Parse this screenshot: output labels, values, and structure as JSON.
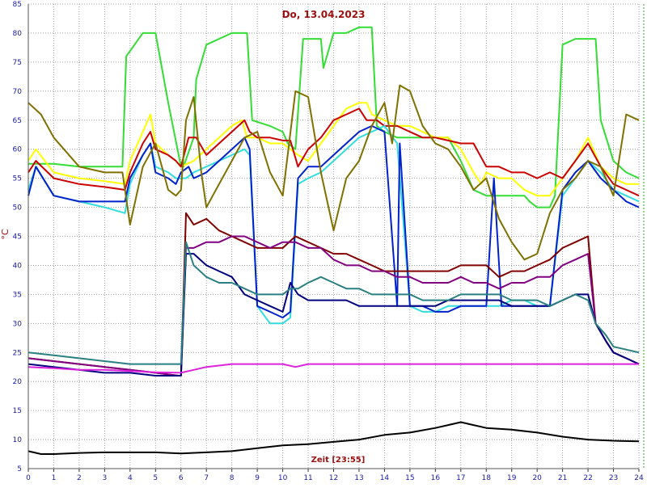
{
  "chart_data": {
    "type": "line",
    "title": "Do, 13.04.2023",
    "xlabel": "Zeit [23:55]",
    "ylabel": "°C",
    "xlim": [
      0,
      24
    ],
    "ylim": [
      5,
      85
    ],
    "xticks": [
      "0",
      "1",
      "2",
      "3",
      "4",
      "5",
      "6",
      "7",
      "8",
      "9",
      "10",
      "11",
      "12",
      "13",
      "14",
      "15",
      "16",
      "17",
      "18",
      "19",
      "20",
      "21",
      "22",
      "23",
      "24"
    ],
    "yticks": [
      "5",
      "10",
      "15",
      "20",
      "25",
      "30",
      "35",
      "40",
      "45",
      "50",
      "55",
      "60",
      "65",
      "70",
      "75",
      "80",
      "85"
    ],
    "grid": true,
    "series": [
      {
        "color": "#33dd33",
        "x": [
          0,
          1,
          2,
          3,
          3.7,
          3.85,
          4.5,
          5,
          5.5,
          6.0,
          6.1,
          6.5,
          6.6,
          7,
          7.5,
          8,
          8.6,
          8.8,
          9.5,
          10,
          10.2,
          10.5,
          10.8,
          11,
          11.5,
          11.6,
          12,
          12.5,
          13,
          13.5,
          13.7,
          14,
          14.5,
          15,
          15.5,
          16,
          16.5,
          17,
          17.5,
          18,
          18.2,
          18.5,
          19,
          19.5,
          19.7,
          20,
          20.5,
          20.7,
          21,
          21.5,
          22,
          22.3,
          22.5,
          23,
          23.5,
          24
        ],
        "values": [
          57.5,
          57.5,
          57,
          57,
          57,
          76,
          80,
          80,
          68,
          57,
          57,
          62,
          72,
          78,
          79,
          80,
          80,
          65,
          64,
          63,
          61,
          60,
          79,
          79,
          79,
          74,
          80,
          80,
          81,
          81,
          64,
          63,
          62,
          62,
          62,
          62,
          62,
          58,
          53,
          52,
          52,
          52,
          52,
          52,
          51,
          50,
          50,
          52,
          78,
          79,
          79,
          79,
          65,
          58,
          56,
          55
        ]
      },
      {
        "color": "#ffff00",
        "x": [
          0,
          0.3,
          1,
          2,
          3,
          3.8,
          4,
          4.5,
          4.8,
          5,
          5.5,
          5.8,
          6.0,
          6.5,
          7,
          7.5,
          8,
          8.4,
          8.6,
          9,
          9.5,
          10,
          10.3,
          10.6,
          11,
          11.5,
          12,
          12.5,
          13,
          13.3,
          13.5,
          14,
          14.5,
          15,
          15.5,
          16,
          16.5,
          17,
          17.5,
          17.8,
          18,
          18.5,
          19,
          19.5,
          20,
          20.5,
          21,
          21.5,
          22,
          22.5,
          23,
          23.5,
          24
        ],
        "values": [
          58,
          60,
          56,
          55,
          54.5,
          54,
          58,
          63,
          66,
          61,
          59,
          58,
          57,
          58,
          60,
          62,
          64,
          65,
          62,
          62,
          61,
          61,
          60,
          59,
          58,
          61,
          64,
          67,
          68,
          68,
          66,
          65,
          64,
          64,
          63,
          62,
          62,
          60,
          56,
          54,
          56,
          55,
          55,
          53,
          52,
          52,
          55,
          58,
          62,
          57,
          55,
          54,
          54
        ]
      },
      {
        "color": "#cc0000",
        "x": [
          0,
          0.3,
          1,
          2,
          3,
          3.8,
          4,
          4.5,
          4.8,
          5,
          5.5,
          5.8,
          6.0,
          6.3,
          6.6,
          7,
          7.5,
          8,
          8.5,
          8.7,
          9,
          9.5,
          10,
          10.3,
          10.6,
          11,
          11.5,
          12,
          12.5,
          13,
          13.3,
          13.7,
          14,
          14.5,
          15,
          15.5,
          16,
          16.5,
          17,
          17.5,
          18,
          18.5,
          19,
          19.5,
          20,
          20.5,
          21,
          21.5,
          22,
          22.5,
          23,
          23.5,
          24
        ],
        "values": [
          56,
          58,
          55,
          54,
          53.5,
          53,
          56,
          61,
          63,
          60,
          59,
          58,
          57,
          62,
          62,
          59,
          61,
          63,
          65,
          63,
          62,
          62,
          61.5,
          61.5,
          57,
          60,
          62,
          65,
          66,
          67,
          65,
          65,
          64,
          64,
          63,
          62,
          62,
          61.5,
          61,
          61,
          57,
          57,
          56,
          56,
          55,
          56,
          55,
          58,
          61,
          57,
          54,
          53,
          52
        ]
      },
      {
        "color": "#33dddd",
        "x": [
          0,
          0.3,
          1,
          2,
          3,
          3.8,
          4,
          4.5,
          4.8,
          5,
          5.5,
          5.8,
          6.0,
          6.2,
          6.5,
          7,
          7.5,
          8,
          8.5,
          8.7,
          9,
          9.5,
          10,
          10.3,
          10.6,
          11,
          11.5,
          12,
          12.5,
          13,
          13.5,
          14,
          14.5,
          15,
          15.5,
          16,
          16.5,
          17,
          17.5,
          18,
          18.5,
          19,
          19.5,
          20,
          20.5,
          21,
          21.5,
          22,
          22.5,
          23,
          23.5,
          24
        ],
        "values": [
          53,
          57,
          52,
          51,
          50,
          49,
          54,
          59,
          61,
          57,
          56,
          55,
          55,
          55,
          56,
          57,
          58,
          59,
          60,
          59,
          33,
          30,
          30,
          31,
          54,
          55,
          56,
          58,
          60,
          62,
          63,
          64,
          61,
          33,
          32,
          32,
          33,
          33,
          33,
          33,
          33,
          34,
          34,
          33,
          33,
          52,
          55,
          58,
          56,
          53,
          52,
          51
        ]
      },
      {
        "color": "#0022cc",
        "x": [
          0,
          0.3,
          1,
          2,
          3,
          3.8,
          4,
          4.5,
          4.8,
          5,
          5.5,
          5.8,
          6.0,
          6.3,
          6.5,
          7,
          7.5,
          8,
          8.5,
          8.7,
          9,
          9.5,
          10,
          10.3,
          10.6,
          11,
          11.5,
          12,
          12.5,
          13,
          13.5,
          14,
          14.5,
          14.6,
          15,
          15.5,
          16,
          16.5,
          17,
          17.5,
          18,
          18.3,
          18.6,
          19,
          19.5,
          20,
          20.5,
          21,
          21.5,
          22,
          22.5,
          23,
          23.5,
          24
        ],
        "values": [
          52,
          57,
          52,
          51,
          51,
          51,
          55,
          59,
          61,
          56,
          55,
          54,
          56,
          57,
          55,
          56,
          58,
          60,
          62,
          60,
          33,
          32,
          31,
          32,
          55,
          57,
          57,
          59,
          61,
          63,
          64,
          63,
          33,
          61,
          33,
          33,
          32,
          32,
          33,
          33,
          33,
          55,
          33,
          33,
          33,
          33,
          33,
          53,
          56,
          58,
          55,
          53,
          51,
          50
        ]
      },
      {
        "color": "#800000",
        "x": [
          0,
          1,
          2,
          3,
          4,
          5,
          5.9,
          6.0,
          6.2,
          6.5,
          7,
          7.5,
          8,
          8.5,
          9,
          9.5,
          10,
          10.5,
          11,
          11.5,
          12,
          12.5,
          13,
          13.5,
          14,
          14.5,
          15,
          15.5,
          16,
          16.5,
          17,
          17.5,
          18,
          18.5,
          19,
          19.5,
          20,
          20.5,
          21,
          21.5,
          22,
          22.3,
          22.7,
          23,
          23.5,
          24
        ],
        "values": [
          24,
          23.5,
          23,
          22.5,
          22,
          21.5,
          21,
          21,
          49,
          47,
          48,
          46,
          45,
          44,
          43,
          43,
          43,
          45,
          44,
          43,
          42,
          42,
          41,
          40,
          39,
          39,
          39,
          39,
          39,
          39,
          40,
          40,
          40,
          38,
          39,
          39,
          40,
          41,
          43,
          44,
          45,
          30,
          27,
          25,
          24,
          23
        ]
      },
      {
        "color": "#800080",
        "x": [
          0,
          1,
          2,
          3,
          4,
          5,
          5.9,
          6.0,
          6.2,
          6.5,
          7,
          7.5,
          8,
          8.5,
          9,
          9.5,
          10,
          10.5,
          11,
          11.5,
          12,
          12.5,
          13,
          13.5,
          14,
          14.5,
          15,
          15.5,
          16,
          16.5,
          17,
          17.5,
          18,
          18.5,
          19,
          19.5,
          20,
          20.5,
          21,
          21.5,
          22,
          22.3,
          22.7,
          23,
          23.5,
          24
        ],
        "values": [
          24,
          23.5,
          23,
          22.5,
          22,
          21.5,
          21,
          21,
          43,
          43,
          44,
          44,
          45,
          45,
          44,
          43,
          44,
          44,
          43,
          43,
          41,
          40,
          40,
          39,
          39,
          38,
          38,
          37,
          37,
          37,
          38,
          37,
          37,
          36,
          37,
          37,
          38,
          38,
          40,
          41,
          42,
          30,
          27,
          25,
          24,
          23
        ]
      },
      {
        "color": "#000080",
        "x": [
          0,
          1,
          2,
          3,
          4,
          5,
          5.9,
          6.0,
          6.2,
          6.5,
          7,
          7.5,
          8,
          8.5,
          9,
          9.5,
          10,
          10.3,
          10.6,
          11,
          11.5,
          12,
          12.5,
          13,
          13.5,
          14,
          14.5,
          15,
          15.5,
          16,
          16.5,
          17,
          17.5,
          18,
          18.5,
          19,
          19.5,
          20,
          20.5,
          21,
          21.5,
          22,
          22.3,
          22.7,
          23,
          23.5,
          24
        ],
        "values": [
          23,
          22.5,
          22,
          21.5,
          21.5,
          21,
          21,
          21,
          42,
          42,
          40,
          39,
          38,
          35,
          34,
          33,
          32,
          37,
          35,
          34,
          34,
          34,
          34,
          33,
          33,
          33,
          33,
          33,
          33,
          33,
          34,
          34,
          34,
          34,
          34,
          33,
          33,
          33,
          33,
          34,
          35,
          35,
          30,
          27,
          25,
          24,
          23
        ]
      },
      {
        "color": "#2a8080",
        "x": [
          0,
          1,
          2,
          3,
          4,
          5,
          5.9,
          6.0,
          6.2,
          6.5,
          7,
          7.5,
          8,
          8.5,
          9,
          9.5,
          10,
          10.3,
          10.6,
          11,
          11.5,
          12,
          12.5,
          13,
          13.5,
          14,
          14.5,
          15,
          15.5,
          16,
          16.5,
          17,
          17.5,
          18,
          18.5,
          19,
          19.5,
          20,
          20.5,
          21,
          21.5,
          22,
          22.3,
          22.7,
          23,
          23.5,
          24
        ],
        "values": [
          25,
          24.5,
          24,
          23.5,
          23,
          23,
          23,
          23,
          44,
          40,
          38,
          37,
          37,
          36,
          35,
          35,
          35,
          36,
          36,
          37,
          38,
          37,
          36,
          36,
          35,
          35,
          35,
          35,
          34,
          34,
          34,
          35,
          35,
          35,
          35,
          34,
          34,
          34,
          33,
          34,
          35,
          34,
          30,
          28,
          26,
          25.5,
          25
        ]
      },
      {
        "color": "#807000",
        "x": [
          0,
          0.5,
          1,
          2,
          3,
          3.7,
          4,
          4.5,
          5,
          5.5,
          5.8,
          6.0,
          6.2,
          6.5,
          6.8,
          7,
          7.5,
          8,
          8.5,
          9,
          9.5,
          10,
          10.5,
          11,
          11.5,
          12,
          12.5,
          13,
          13.5,
          14,
          14.3,
          14.6,
          15,
          15.5,
          16,
          16.5,
          17,
          17.5,
          18,
          18.5,
          19,
          19.5,
          20,
          20.5,
          21,
          21.5,
          22,
          22.5,
          23,
          23.5,
          24
        ],
        "values": [
          68,
          66,
          62,
          57,
          56,
          56,
          47,
          57,
          61,
          53,
          52,
          53,
          65,
          69,
          56,
          50,
          54,
          58,
          62,
          63,
          56,
          52,
          70,
          69,
          56,
          46,
          55,
          58,
          64,
          68,
          61,
          71,
          70,
          64,
          61,
          60,
          57,
          53,
          55,
          48,
          44,
          41,
          42,
          49,
          53,
          55,
          58,
          57,
          52,
          66,
          65
        ]
      },
      {
        "color": "#dd22dd",
        "x": [
          0,
          1,
          2,
          3,
          4,
          5,
          6,
          6.5,
          7,
          8,
          9,
          10,
          10.5,
          11,
          12,
          13,
          14,
          15,
          16,
          17,
          18,
          19,
          20,
          21,
          22,
          23,
          24
        ],
        "values": [
          22.5,
          22.3,
          22,
          22,
          21.8,
          21.6,
          21.5,
          22,
          22.5,
          23,
          23,
          23,
          22.5,
          23,
          23,
          23,
          23,
          23,
          23,
          23,
          23,
          23,
          23,
          23,
          23,
          23,
          23
        ]
      },
      {
        "color": "#000000",
        "x": [
          0,
          0.5,
          1,
          2,
          3,
          4,
          5,
          6,
          7,
          8,
          9,
          10,
          11,
          12,
          13,
          14,
          15,
          16,
          16.5,
          17,
          17.5,
          18,
          19,
          20,
          21,
          22,
          23,
          24
        ],
        "values": [
          8,
          7.5,
          7.5,
          7.7,
          7.8,
          7.8,
          7.8,
          7.6,
          7.8,
          8,
          8.5,
          9,
          9.2,
          9.6,
          10,
          10.8,
          11.2,
          12,
          12.5,
          13,
          12.5,
          12,
          11.7,
          11.2,
          10.5,
          10,
          9.8,
          9.7
        ]
      }
    ]
  }
}
